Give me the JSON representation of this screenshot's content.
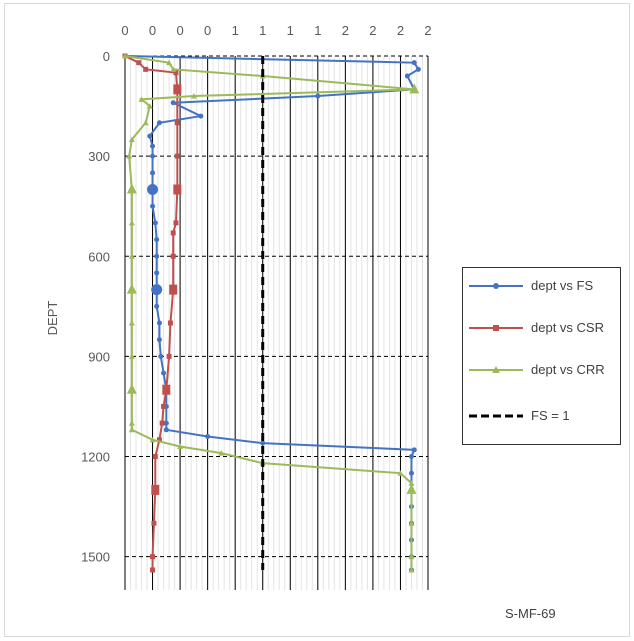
{
  "chart_data": {
    "type": "scatter",
    "title": "",
    "xlabel": "",
    "ylabel": "DEPT",
    "x_tick_labels": [
      "0",
      "0",
      "0",
      "0",
      "1",
      "1",
      "1",
      "1",
      "2",
      "2",
      "2",
      "2"
    ],
    "x_ticks": [
      0,
      0.2,
      0.4,
      0.6,
      0.8,
      1.0,
      1.2,
      1.4,
      1.6,
      1.8,
      2.0,
      2.2
    ],
    "xlim": [
      0,
      2.2
    ],
    "ylim": [
      0,
      1600
    ],
    "y_ticks": [
      0,
      300,
      600,
      900,
      1200,
      1500
    ],
    "y_reversed": true,
    "x_axis_position": "top",
    "grid": true,
    "legend_position": "right",
    "series": [
      {
        "name": "dept vs FS",
        "color": "#4472c4",
        "marker": "circle",
        "points": [
          [
            0,
            0
          ],
          [
            2.1,
            20
          ],
          [
            2.13,
            40
          ],
          [
            2.05,
            60
          ],
          [
            2.1,
            100
          ],
          [
            1.4,
            120
          ],
          [
            0.35,
            140
          ],
          [
            0.55,
            180
          ],
          [
            0.25,
            200
          ],
          [
            0.18,
            240
          ],
          [
            0.2,
            270
          ],
          [
            0.2,
            300
          ],
          [
            0.2,
            350
          ],
          [
            0.2,
            400
          ],
          [
            0.2,
            450
          ],
          [
            0.22,
            500
          ],
          [
            0.23,
            550
          ],
          [
            0.23,
            600
          ],
          [
            0.23,
            650
          ],
          [
            0.23,
            700
          ],
          [
            0.23,
            750
          ],
          [
            0.25,
            800
          ],
          [
            0.25,
            850
          ],
          [
            0.26,
            900
          ],
          [
            0.28,
            950
          ],
          [
            0.3,
            1000
          ],
          [
            0.3,
            1050
          ],
          [
            0.3,
            1100
          ],
          [
            0.3,
            1120
          ],
          [
            0.6,
            1140
          ],
          [
            1.0,
            1160
          ],
          [
            2.1,
            1180
          ],
          [
            2.08,
            1200
          ],
          [
            2.08,
            1250
          ],
          [
            2.08,
            1300
          ],
          [
            2.08,
            1350
          ],
          [
            2.08,
            1400
          ],
          [
            2.08,
            1450
          ],
          [
            2.08,
            1500
          ],
          [
            2.08,
            1540
          ]
        ]
      },
      {
        "name": "dept vs CSR",
        "color": "#c0504d",
        "marker": "square",
        "points": [
          [
            0,
            0
          ],
          [
            0.1,
            20
          ],
          [
            0.15,
            40
          ],
          [
            0.37,
            50
          ],
          [
            0.38,
            100
          ],
          [
            0.38,
            200
          ],
          [
            0.38,
            300
          ],
          [
            0.38,
            400
          ],
          [
            0.37,
            500
          ],
          [
            0.35,
            530
          ],
          [
            0.35,
            600
          ],
          [
            0.35,
            700
          ],
          [
            0.33,
            800
          ],
          [
            0.32,
            900
          ],
          [
            0.3,
            1000
          ],
          [
            0.28,
            1050
          ],
          [
            0.27,
            1100
          ],
          [
            0.25,
            1150
          ],
          [
            0.22,
            1200
          ],
          [
            0.22,
            1300
          ],
          [
            0.21,
            1400
          ],
          [
            0.2,
            1500
          ],
          [
            0.2,
            1540
          ]
        ]
      },
      {
        "name": "dept vs CRR",
        "color": "#9bbb59",
        "marker": "triangle",
        "points": [
          [
            0,
            0
          ],
          [
            0.32,
            20
          ],
          [
            0.35,
            40
          ],
          [
            1.0,
            60
          ],
          [
            2.1,
            100
          ],
          [
            0.5,
            120
          ],
          [
            0.12,
            130
          ],
          [
            0.18,
            150
          ],
          [
            0.15,
            200
          ],
          [
            0.05,
            250
          ],
          [
            0.03,
            300
          ],
          [
            0.05,
            400
          ],
          [
            0.05,
            500
          ],
          [
            0.05,
            600
          ],
          [
            0.05,
            700
          ],
          [
            0.05,
            800
          ],
          [
            0.05,
            900
          ],
          [
            0.05,
            1000
          ],
          [
            0.05,
            1100
          ],
          [
            0.05,
            1120
          ],
          [
            0.2,
            1150
          ],
          [
            0.4,
            1170
          ],
          [
            0.7,
            1190
          ],
          [
            1.0,
            1220
          ],
          [
            2.0,
            1250
          ],
          [
            2.08,
            1280
          ],
          [
            2.08,
            1300
          ],
          [
            2.08,
            1400
          ],
          [
            2.08,
            1500
          ],
          [
            2.08,
            1540
          ]
        ]
      },
      {
        "name": "FS = 1",
        "color": "#000000",
        "marker": "none",
        "dashed": true,
        "points": [
          [
            1,
            0
          ],
          [
            1,
            1540
          ]
        ]
      }
    ],
    "highlight_markers": [
      {
        "series": 0,
        "points": [
          [
            0.2,
            400
          ],
          [
            0.23,
            700
          ]
        ]
      },
      {
        "series": 1,
        "points": [
          [
            0.38,
            100
          ],
          [
            0.38,
            400
          ],
          [
            0.35,
            700
          ],
          [
            0.3,
            1000
          ],
          [
            0.22,
            1300
          ]
        ]
      },
      {
        "series": 2,
        "points": [
          [
            2.1,
            100
          ],
          [
            0.05,
            400
          ],
          [
            0.05,
            700
          ],
          [
            0.05,
            1000
          ],
          [
            2.08,
            1300
          ]
        ]
      }
    ]
  },
  "legend": {
    "items": [
      "dept vs FS",
      "dept vs CSR",
      "dept vs CRR",
      "FS = 1"
    ]
  },
  "caption": "S-MF-69"
}
